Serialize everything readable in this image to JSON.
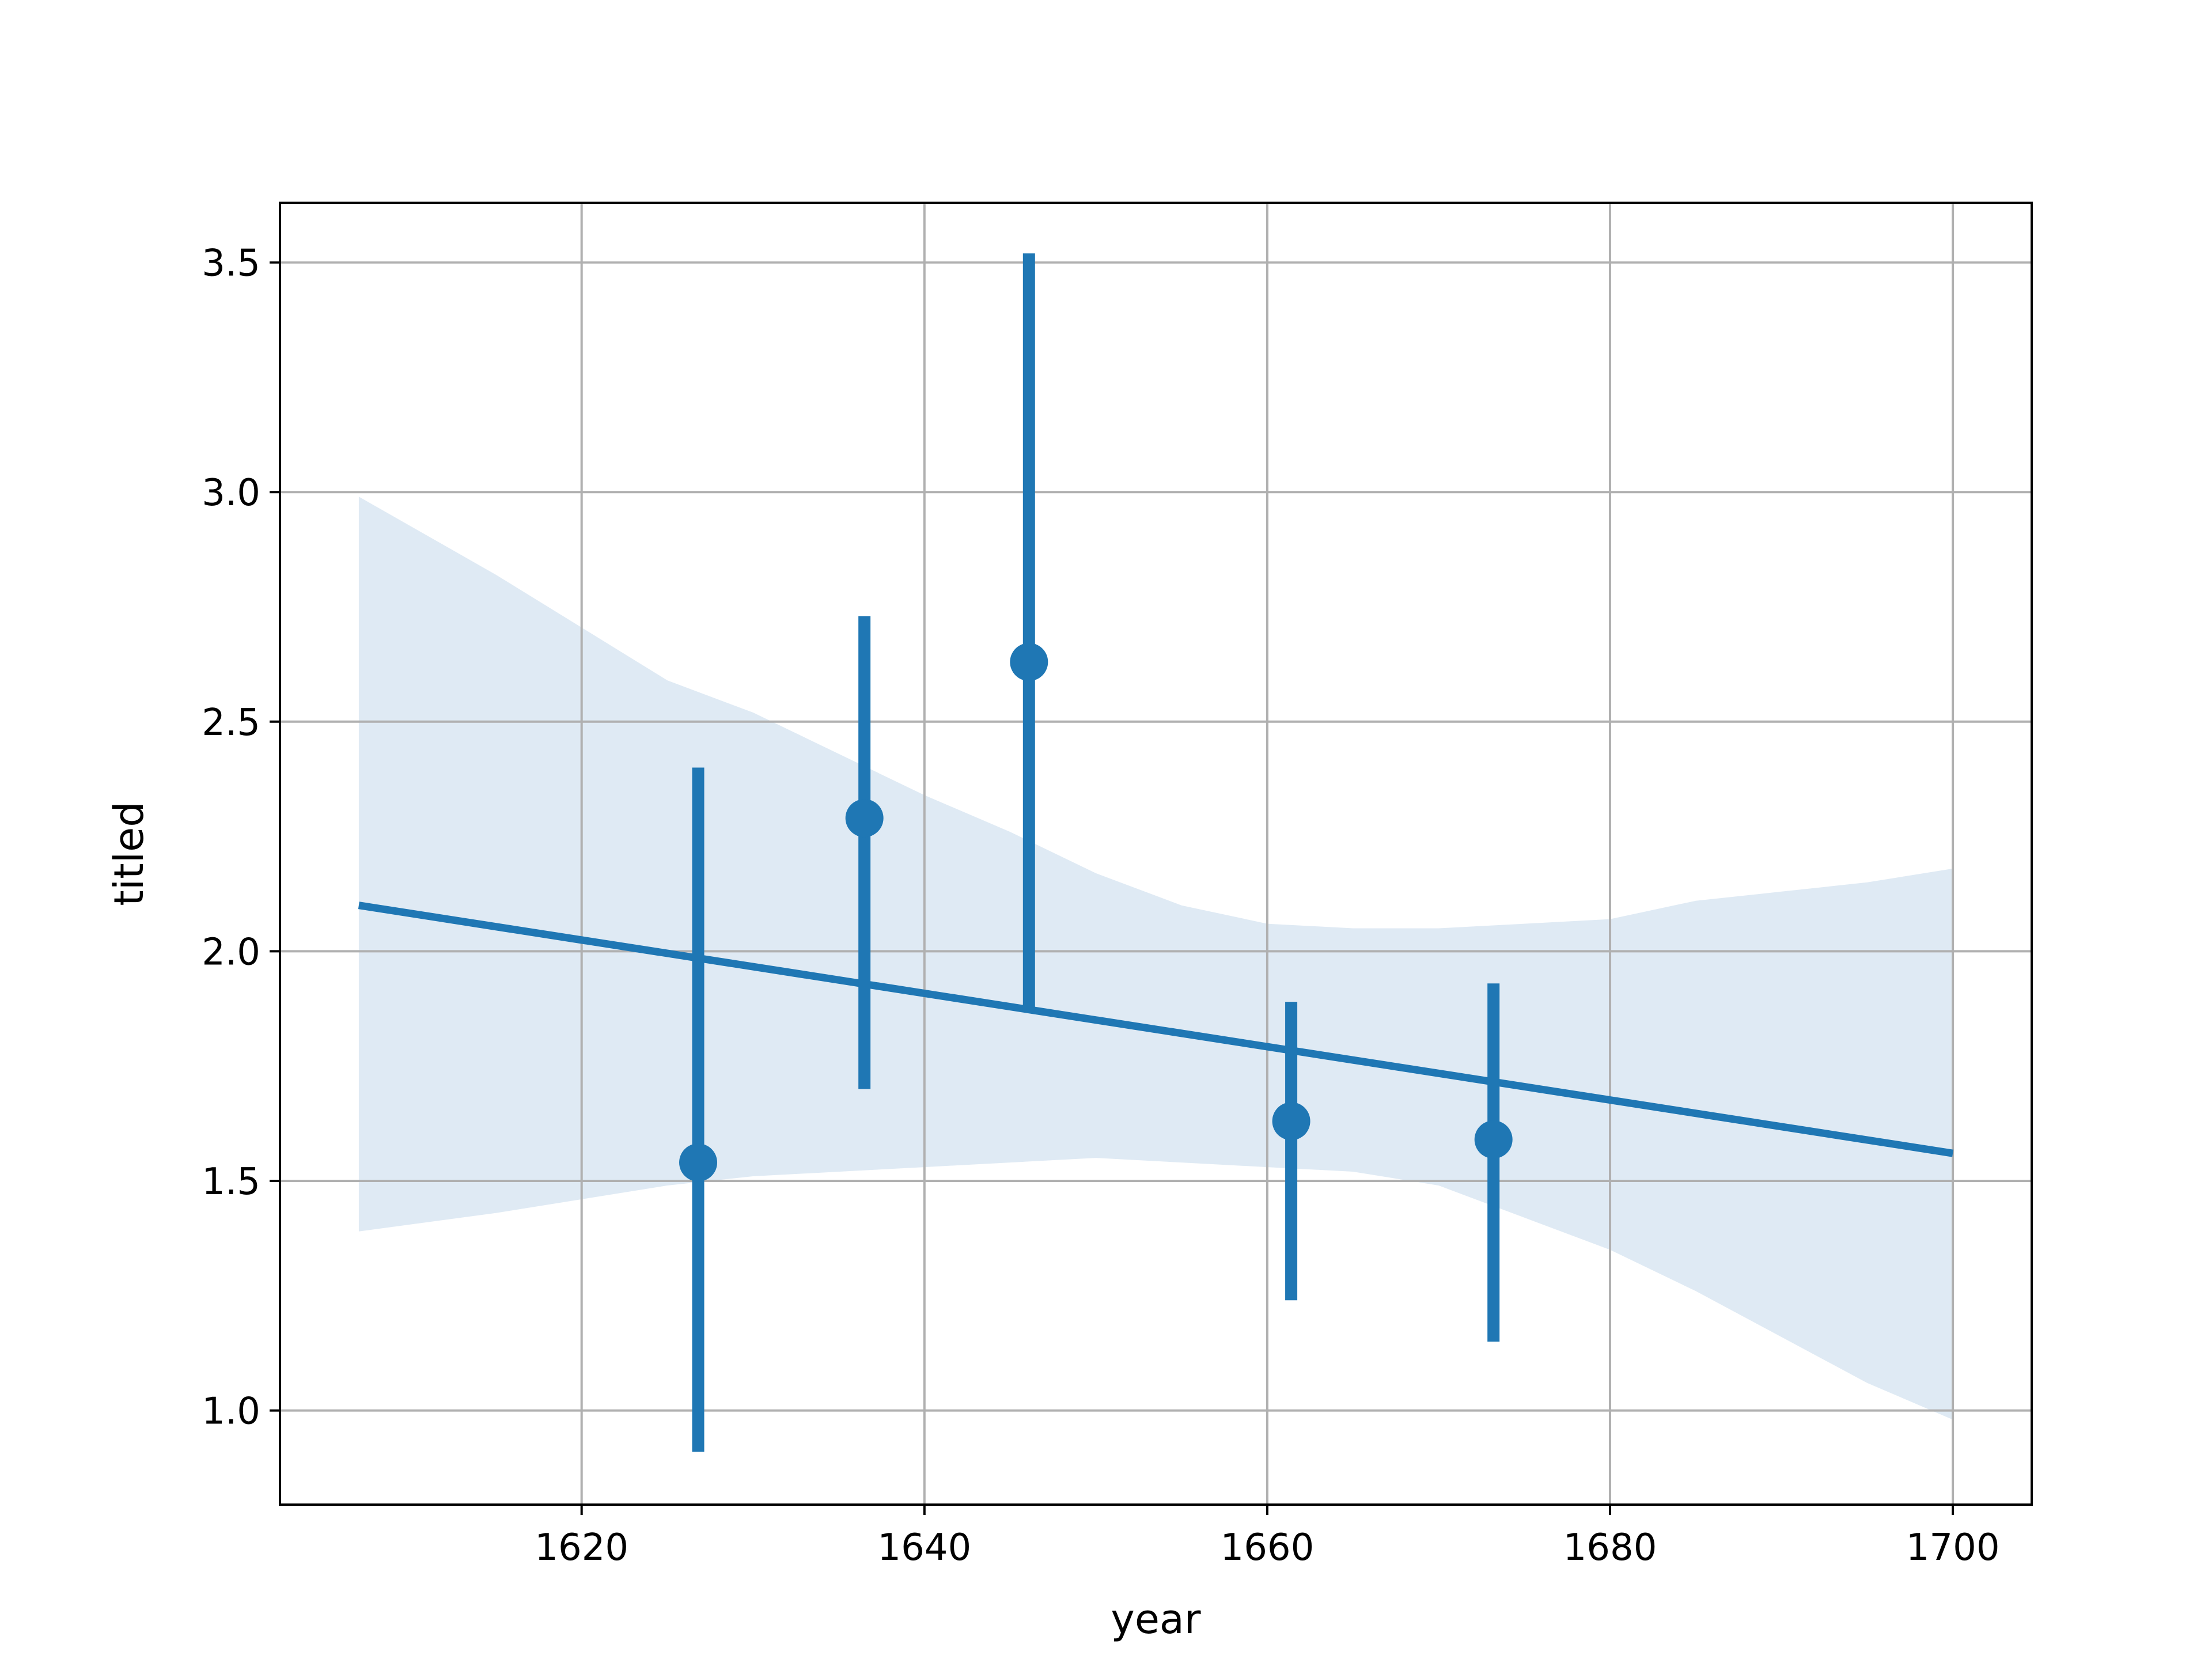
{
  "chart_data": {
    "type": "scatter",
    "xlabel": "year",
    "ylabel": "titled",
    "xlim": [
      1602.4,
      1704.6
    ],
    "ylim": [
      0.795,
      3.63
    ],
    "xticks": [
      1620,
      1640,
      1660,
      1680,
      1700
    ],
    "xtick_labels": [
      "1620",
      "1640",
      "1660",
      "1680",
      "1700"
    ],
    "yticks": [
      1.0,
      1.5,
      2.0,
      2.5,
      3.0,
      3.5
    ],
    "ytick_labels": [
      "1.0",
      "1.5",
      "2.0",
      "2.5",
      "3.0",
      "3.5"
    ],
    "grid": true,
    "color": "#1f77b4",
    "band_color": "#dfeaf4",
    "points": [
      {
        "x": 1626.8,
        "y": 1.54,
        "ylow": 0.91,
        "yhigh": 2.4
      },
      {
        "x": 1636.5,
        "y": 2.29,
        "ylow": 1.7,
        "yhigh": 2.73
      },
      {
        "x": 1646.1,
        "y": 2.63,
        "ylow": 1.87,
        "yhigh": 3.52
      },
      {
        "x": 1661.4,
        "y": 1.63,
        "ylow": 1.24,
        "yhigh": 1.89
      },
      {
        "x": 1673.2,
        "y": 1.59,
        "ylow": 1.15,
        "yhigh": 1.93
      }
    ],
    "regression_line": {
      "x": [
        1607,
        1700
      ],
      "y": [
        2.1,
        1.56
      ]
    },
    "confidence_band": {
      "upper": [
        [
          1607,
          2.99
        ],
        [
          1615,
          2.82
        ],
        [
          1625,
          2.59
        ],
        [
          1630,
          2.52
        ],
        [
          1640,
          2.34
        ],
        [
          1645,
          2.26
        ],
        [
          1650,
          2.17
        ],
        [
          1655,
          2.1
        ],
        [
          1660,
          2.06
        ],
        [
          1665,
          2.05
        ],
        [
          1670,
          2.05
        ],
        [
          1675,
          2.06
        ],
        [
          1680,
          2.07
        ],
        [
          1685,
          2.11
        ],
        [
          1690,
          2.13
        ],
        [
          1695,
          2.15
        ],
        [
          1700,
          2.18
        ]
      ],
      "lower": [
        [
          1607,
          1.39
        ],
        [
          1615,
          1.43
        ],
        [
          1625,
          1.49
        ],
        [
          1630,
          1.51
        ],
        [
          1640,
          1.53
        ],
        [
          1645,
          1.54
        ],
        [
          1650,
          1.55
        ],
        [
          1655,
          1.54
        ],
        [
          1660,
          1.53
        ],
        [
          1665,
          1.52
        ],
        [
          1670,
          1.49
        ],
        [
          1675,
          1.42
        ],
        [
          1680,
          1.35
        ],
        [
          1685,
          1.26
        ],
        [
          1690,
          1.16
        ],
        [
          1695,
          1.06
        ],
        [
          1700,
          0.98
        ]
      ]
    }
  }
}
